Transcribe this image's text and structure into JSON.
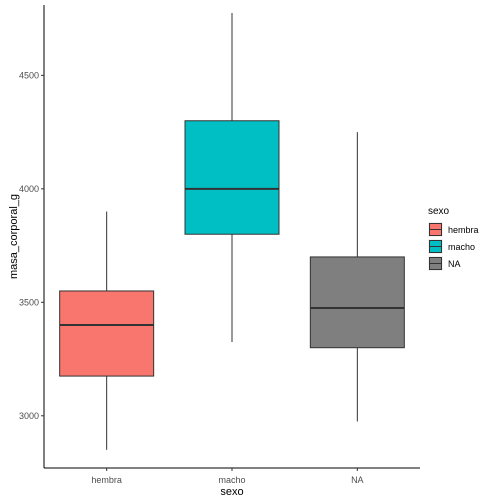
{
  "chart_data": {
    "type": "boxplot",
    "xlabel": "sexo",
    "ylabel": "masa_corporal_g",
    "ylim": [
      2770,
      4810
    ],
    "yticks": [
      3000,
      3500,
      4000,
      4500
    ],
    "grid": false,
    "legend": {
      "title": "sexo",
      "position": "right"
    },
    "categories": [
      "hembra",
      "macho",
      "NA"
    ],
    "boxes": [
      {
        "category": "hembra",
        "min": 2850,
        "q1": 3175,
        "median": 3400,
        "q3": 3550,
        "max": 3900,
        "color": "#F8766D"
      },
      {
        "category": "macho",
        "min": 3325,
        "q1": 3800,
        "median": 4000,
        "q3": 4300,
        "max": 4775,
        "color": "#00BFC4"
      },
      {
        "category": "NA",
        "min": 2975,
        "q1": 3300,
        "median": 3475,
        "q3": 3700,
        "max": 4250,
        "color": "#7F7F7F"
      }
    ]
  }
}
